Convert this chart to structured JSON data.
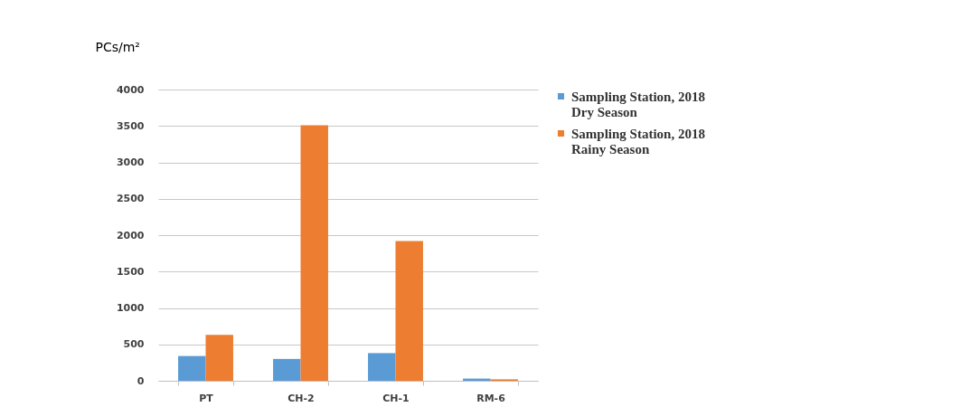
{
  "chart_data": {
    "type": "bar",
    "ylabel": "PCs/m²",
    "categories": [
      "PT",
      "CH-2",
      "CH-1",
      "RM-6"
    ],
    "series": [
      {
        "name": "Sampling Station, 2018 Dry Season",
        "color": "#5b9bd5",
        "values": [
          340,
          300,
          380,
          30
        ]
      },
      {
        "name": "Sampling Station, 2018 Rainy Season",
        "color": "#ed7d31",
        "values": [
          630,
          3510,
          1920,
          20
        ]
      }
    ],
    "ylim": [
      0,
      4000
    ],
    "yticks": [
      0,
      500,
      1000,
      1500,
      2000,
      2500,
      3000,
      3500,
      4000
    ],
    "grid": "y",
    "legend": "right"
  }
}
